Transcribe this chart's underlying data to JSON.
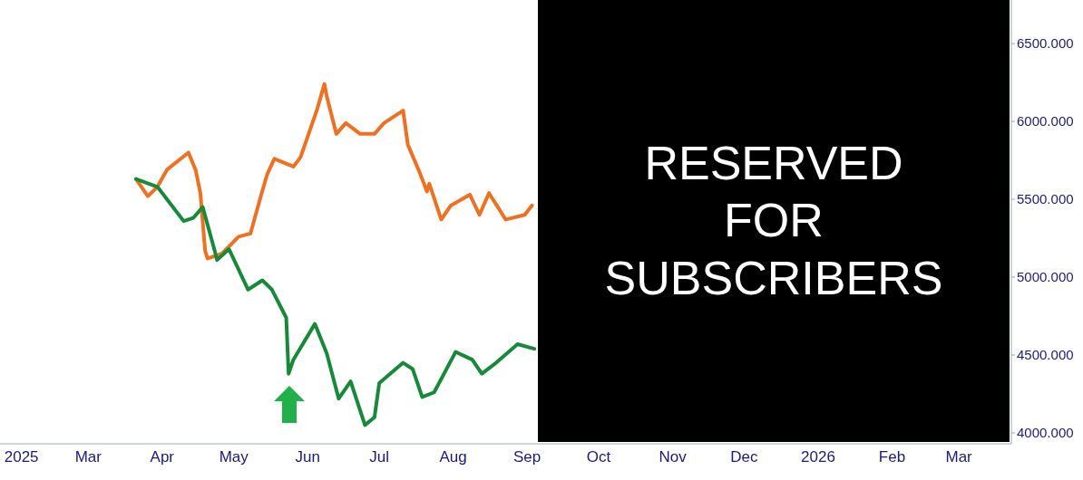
{
  "chart_data": {
    "type": "line",
    "series": [
      {
        "color": "#ee7020",
        "x": [
          "2025-03-21",
          "2025-03-26",
          "2025-03-30",
          "2025-04-03",
          "2025-04-12",
          "2025-04-15",
          "2025-04-17",
          "2025-04-19",
          "2025-04-20",
          "2025-04-26",
          "2025-05-03",
          "2025-05-08",
          "2025-05-12",
          "2025-05-15",
          "2025-05-18",
          "2025-05-26",
          "2025-05-29",
          "2025-06-05",
          "2025-06-08",
          "2025-06-09",
          "2025-06-13",
          "2025-06-17",
          "2025-06-23",
          "2025-06-29",
          "2025-07-03",
          "2025-07-11",
          "2025-07-13",
          "2025-07-18",
          "2025-07-21",
          "2025-07-22",
          "2025-07-27",
          "2025-07-31",
          "2025-08-08",
          "2025-08-12",
          "2025-08-16",
          "2025-08-23",
          "2025-08-31",
          "2025-09-03"
        ],
        "values": [
          5630,
          5520,
          5580,
          5690,
          5800,
          5690,
          5540,
          5170,
          5120,
          5150,
          5260,
          5280,
          5500,
          5660,
          5760,
          5710,
          5770,
          6080,
          6240,
          6160,
          5920,
          5990,
          5920,
          5920,
          5990,
          6070,
          5850,
          5670,
          5550,
          5600,
          5370,
          5460,
          5530,
          5400,
          5540,
          5370,
          5400,
          5460
        ]
      },
      {
        "color": "#178a3a",
        "x": [
          "2025-03-21",
          "2025-03-30",
          "2025-04-10",
          "2025-04-14",
          "2025-04-18",
          "2025-04-23",
          "2025-04-24",
          "2025-04-29",
          "2025-05-07",
          "2025-05-13",
          "2025-05-17",
          "2025-05-23",
          "2025-05-24",
          "2025-05-26",
          "2025-06-04",
          "2025-06-09",
          "2025-06-14",
          "2025-06-19",
          "2025-06-25",
          "2025-06-29",
          "2025-07-01",
          "2025-07-11",
          "2025-07-15",
          "2025-07-19",
          "2025-07-24",
          "2025-08-02",
          "2025-08-09",
          "2025-08-13",
          "2025-08-19",
          "2025-08-28",
          "2025-09-04"
        ],
        "values": [
          5630,
          5580,
          5360,
          5380,
          5450,
          5170,
          5110,
          5180,
          4920,
          4980,
          4920,
          4740,
          4380,
          4470,
          4700,
          4510,
          4220,
          4330,
          4050,
          4100,
          4320,
          4450,
          4410,
          4230,
          4260,
          4520,
          4470,
          4380,
          4450,
          4570,
          4540
        ]
      }
    ],
    "xlim": [
      "2025-01-23",
      "2026-03-23"
    ],
    "xticks": [
      {
        "value": "2025-02-01",
        "label": "2025"
      },
      {
        "value": "2025-03-01",
        "label": "Mar"
      },
      {
        "value": "2025-04-01",
        "label": "Apr"
      },
      {
        "value": "2025-05-01",
        "label": "May"
      },
      {
        "value": "2025-06-01",
        "label": "Jun"
      },
      {
        "value": "2025-07-01",
        "label": "Jul"
      },
      {
        "value": "2025-08-01",
        "label": "Aug"
      },
      {
        "value": "2025-09-01",
        "label": "Sep"
      },
      {
        "value": "2025-10-01",
        "label": "Oct"
      },
      {
        "value": "2025-11-01",
        "label": "Nov"
      },
      {
        "value": "2025-12-01",
        "label": "Dec"
      },
      {
        "value": "2026-01-01",
        "label": "2026"
      },
      {
        "value": "2026-02-01",
        "label": "Feb"
      },
      {
        "value": "2026-03-01",
        "label": "Mar"
      }
    ],
    "ylim": [
      3930,
      6780
    ],
    "yticks": [
      {
        "value": 4000,
        "label": "4000.000"
      },
      {
        "value": 4500,
        "label": "4500.000"
      },
      {
        "value": 5000,
        "label": "5000.000"
      },
      {
        "value": 5500,
        "label": "5500.000"
      },
      {
        "value": 6000,
        "label": "6000.000"
      },
      {
        "value": 6500,
        "label": "6500.000"
      }
    ],
    "grid": false,
    "marker": "none",
    "line_style": "solid",
    "annotations": [
      "RESERVED FOR SUBSCRIBERS"
    ]
  }
}
